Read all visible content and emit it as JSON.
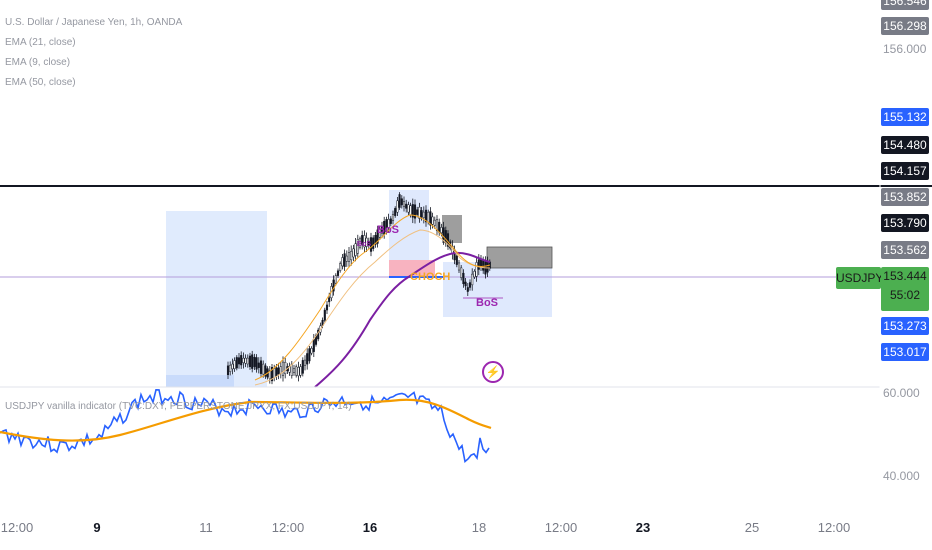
{
  "legend": {
    "symbol_line": "U.S. Dollar / Japanese Yen, 1h, OANDA",
    "ema21": "EMA (21, close)",
    "ema9": "EMA (9, close)",
    "ema50": "EMA (50, close)"
  },
  "indicator": {
    "label": "USDJPY vanilla indicator (TVC:DXY, PEPPERSTONE:JPYX, FX:USDJPY, 14)",
    "level_60": "60.000",
    "level_40": "40.000"
  },
  "price_axis": {
    "top_partial": "156.546",
    "p156_298": "156.298",
    "p156_000": "156.000",
    "p155_132": "155.132",
    "p154_480": "154.480",
    "p154_157": "154.157",
    "p153_852": "153.852",
    "p153_790": "153.790",
    "p153_562": "153.562",
    "p153_273": "153.273",
    "p153_017": "153.017"
  },
  "current": {
    "symbol": "USDJPY",
    "price": "153.444",
    "countdown": "55:02"
  },
  "annotations": {
    "bos1": "BoS",
    "bos_small": "BoS",
    "bos2": "BoS",
    "choch": "CHOCH"
  },
  "time_axis": [
    "12:00",
    "9",
    "11",
    "12:00",
    "16",
    "18",
    "12:00",
    "23",
    "25",
    "12:00"
  ],
  "colors": {
    "ema_orange": "#f5a623",
    "ema_purple": "#7b1fa2",
    "blue_tag": "#2962ff",
    "gray_tag": "#787b86",
    "black_tag": "#131722",
    "green_tag": "#4caf50",
    "zone_blue": "#dbe7fd",
    "zone_pink": "#f8b3c0",
    "zone_gray": "#9e9e9e",
    "rsi_blue": "#2962ff",
    "rsi_orange": "#f59c00"
  }
}
